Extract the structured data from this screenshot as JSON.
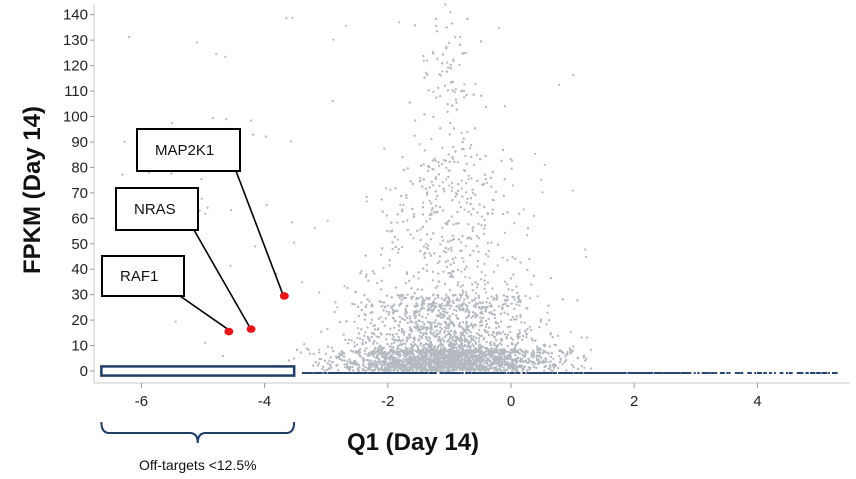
{
  "chart_data": {
    "type": "scatter",
    "title": "",
    "xlabel": "Q1 (Day 14)",
    "ylabel": "FPKM (Day 14)",
    "xlim": [
      -6.9,
      5.5
    ],
    "ylim": [
      -3,
      144
    ],
    "x_ticks": [
      -6,
      -4,
      -2,
      0,
      2,
      4
    ],
    "x_tick_labels": [
      "-6",
      "-4",
      "-2",
      "0",
      "2",
      "4"
    ],
    "y_ticks": [
      0,
      10,
      20,
      30,
      40,
      50,
      60,
      70,
      80,
      90,
      100,
      110,
      120,
      130,
      140
    ],
    "y_tick_labels": [
      "0",
      "10",
      "20",
      "30",
      "40",
      "50",
      "60",
      "70",
      "80",
      "90",
      "100",
      "110",
      "120",
      "130",
      "140"
    ],
    "grid": false,
    "background_points": {
      "color": "#b4b9c0",
      "zero_fpkm_color": "#26456e",
      "description_center_x": -1,
      "description_peak_fpkm": 5
    },
    "highlighted_genes": [
      {
        "label": "RAF1",
        "x": -4.58,
        "y": 15.5,
        "color": "#e8161b"
      },
      {
        "label": "NRAS",
        "x": -4.22,
        "y": 16.5,
        "color": "#e8161b"
      },
      {
        "label": "MAP2K1",
        "x": -3.68,
        "y": 29.5,
        "color": "#e8161b"
      }
    ],
    "annotations": {
      "off_target_region": {
        "x_range": [
          -6.65,
          -3.52
        ],
        "y_range": [
          -1.8,
          1.8
        ],
        "color": "#1f3d66"
      },
      "off_target_label": "Off-targets <12.5%"
    }
  }
}
